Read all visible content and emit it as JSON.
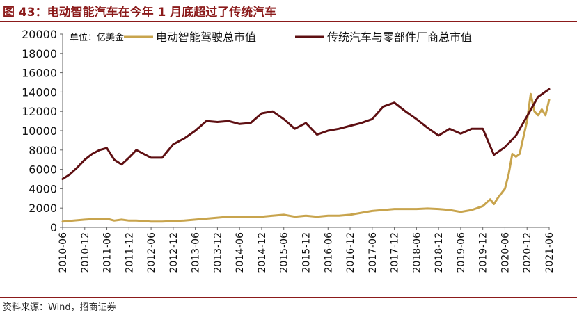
{
  "header": {
    "title": "图 43：电动智能汽车在今年 1 月底超过了传统汽车"
  },
  "footer": {
    "source": "资料来源：Wind，招商证券"
  },
  "colors": {
    "accent": "#8b1a1a",
    "series_ev": "#c8a44d",
    "series_trad": "#5e0f12"
  },
  "chart_data": {
    "type": "line",
    "unit_label": "单位：亿美金",
    "ylim": [
      0,
      20000
    ],
    "yticks": [
      0,
      2000,
      4000,
      6000,
      8000,
      10000,
      12000,
      14000,
      16000,
      18000,
      20000
    ],
    "x_start": "2010-06",
    "x_end": "2021-06",
    "xticks": [
      "2010-06",
      "2010-12",
      "2011-06",
      "2011-12",
      "2012-06",
      "2012-12",
      "2013-06",
      "2013-12",
      "2014-06",
      "2014-12",
      "2015-06",
      "2015-12",
      "2016-06",
      "2016-12",
      "2017-06",
      "2017-12",
      "2018-06",
      "2018-12",
      "2019-06",
      "2019-12",
      "2020-06",
      "2020-12",
      "2021-06"
    ],
    "grid": false,
    "legend_position": "top",
    "series": [
      {
        "name": "电动智能驾驶总市值",
        "color": "#c8a44d",
        "points": [
          [
            "2010-06",
            600
          ],
          [
            "2010-09",
            700
          ],
          [
            "2010-12",
            800
          ],
          [
            "2011-02",
            850
          ],
          [
            "2011-04",
            900
          ],
          [
            "2011-06",
            900
          ],
          [
            "2011-08",
            700
          ],
          [
            "2011-10",
            800
          ],
          [
            "2011-12",
            700
          ],
          [
            "2012-02",
            700
          ],
          [
            "2012-04",
            650
          ],
          [
            "2012-06",
            600
          ],
          [
            "2012-09",
            600
          ],
          [
            "2012-12",
            650
          ],
          [
            "2013-03",
            700
          ],
          [
            "2013-06",
            800
          ],
          [
            "2013-09",
            900
          ],
          [
            "2013-12",
            1000
          ],
          [
            "2014-03",
            1100
          ],
          [
            "2014-06",
            1100
          ],
          [
            "2014-09",
            1050
          ],
          [
            "2014-12",
            1100
          ],
          [
            "2015-03",
            1200
          ],
          [
            "2015-06",
            1300
          ],
          [
            "2015-09",
            1100
          ],
          [
            "2015-12",
            1200
          ],
          [
            "2016-03",
            1100
          ],
          [
            "2016-06",
            1200
          ],
          [
            "2016-09",
            1200
          ],
          [
            "2016-12",
            1300
          ],
          [
            "2017-03",
            1500
          ],
          [
            "2017-06",
            1700
          ],
          [
            "2017-09",
            1800
          ],
          [
            "2017-12",
            1900
          ],
          [
            "2018-03",
            1900
          ],
          [
            "2018-06",
            1900
          ],
          [
            "2018-09",
            1950
          ],
          [
            "2018-12",
            1900
          ],
          [
            "2019-03",
            1800
          ],
          [
            "2019-06",
            1600
          ],
          [
            "2019-09",
            1800
          ],
          [
            "2019-12",
            2200
          ],
          [
            "2020-02",
            2900
          ],
          [
            "2020-03",
            2400
          ],
          [
            "2020-04",
            3000
          ],
          [
            "2020-06",
            4000
          ],
          [
            "2020-07",
            5500
          ],
          [
            "2020-08",
            7600
          ],
          [
            "2020-09",
            7300
          ],
          [
            "2020-10",
            7600
          ],
          [
            "2020-12",
            11000
          ],
          [
            "2021-01",
            13800
          ],
          [
            "2021-02",
            12000
          ],
          [
            "2021-03",
            11600
          ],
          [
            "2021-04",
            12200
          ],
          [
            "2021-05",
            11600
          ],
          [
            "2021-06",
            13200
          ]
        ]
      },
      {
        "name": "传统汽车与零部件厂商总市值",
        "color": "#5e0f12",
        "points": [
          [
            "2010-06",
            5000
          ],
          [
            "2010-08",
            5500
          ],
          [
            "2010-10",
            6200
          ],
          [
            "2010-12",
            7000
          ],
          [
            "2011-02",
            7600
          ],
          [
            "2011-04",
            8000
          ],
          [
            "2011-06",
            8200
          ],
          [
            "2011-08",
            7000
          ],
          [
            "2011-10",
            6500
          ],
          [
            "2011-12",
            7200
          ],
          [
            "2012-02",
            8000
          ],
          [
            "2012-04",
            7600
          ],
          [
            "2012-06",
            7200
          ],
          [
            "2012-09",
            7200
          ],
          [
            "2012-12",
            8600
          ],
          [
            "2013-03",
            9200
          ],
          [
            "2013-06",
            10000
          ],
          [
            "2013-09",
            11000
          ],
          [
            "2013-12",
            10900
          ],
          [
            "2014-03",
            11000
          ],
          [
            "2014-06",
            10700
          ],
          [
            "2014-09",
            10800
          ],
          [
            "2014-12",
            11800
          ],
          [
            "2015-03",
            12000
          ],
          [
            "2015-06",
            11200
          ],
          [
            "2015-09",
            10200
          ],
          [
            "2015-12",
            10800
          ],
          [
            "2016-03",
            9600
          ],
          [
            "2016-06",
            10000
          ],
          [
            "2016-09",
            10200
          ],
          [
            "2016-12",
            10500
          ],
          [
            "2017-03",
            10800
          ],
          [
            "2017-06",
            11200
          ],
          [
            "2017-09",
            12500
          ],
          [
            "2017-12",
            12900
          ],
          [
            "2018-03",
            12000
          ],
          [
            "2018-06",
            11200
          ],
          [
            "2018-09",
            10300
          ],
          [
            "2018-12",
            9500
          ],
          [
            "2019-03",
            10200
          ],
          [
            "2019-06",
            9700
          ],
          [
            "2019-09",
            10200
          ],
          [
            "2019-12",
            10200
          ],
          [
            "2020-03",
            7500
          ],
          [
            "2020-06",
            8300
          ],
          [
            "2020-09",
            9500
          ],
          [
            "2020-12",
            11500
          ],
          [
            "2021-03",
            13500
          ],
          [
            "2021-06",
            14300
          ]
        ]
      }
    ]
  }
}
